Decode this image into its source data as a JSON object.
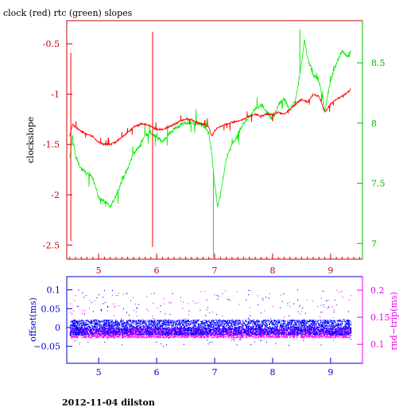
{
  "page": {
    "title": "clock (red) rtc (green) slopes",
    "footer": "2012-11-04 dilston"
  },
  "colors": {
    "red_series": "#ff0000",
    "green_series": "#00ee00",
    "blue_series": "#0000ff",
    "magenta_series": "#ff00ff",
    "top_left_axis": "#cc0000",
    "top_right_axis": "#00bb00",
    "bottom_left_axis": "#0000cc",
    "bottom_right_axis": "#ee00ee"
  },
  "chart_data": [
    {
      "type": "line",
      "title": "clock (red) rtc (green) slopes",
      "xlabel": "",
      "ylabel": "clockslope",
      "y2label": "",
      "xlim": [
        4.45,
        9.55
      ],
      "ylim": [
        -2.64,
        -0.27
      ],
      "y2lim": [
        6.87,
        8.85
      ],
      "x_ticks": [
        "5",
        "6",
        "7",
        "8",
        "9"
      ],
      "y_ticks": [
        "-0.5",
        "-1",
        "-1.5",
        "-2",
        "-2.5"
      ],
      "y2_ticks": [
        "8.5",
        "8",
        "7.5",
        "7"
      ],
      "grid": false,
      "series": [
        {
          "name": "clock",
          "axis": "left",
          "x": [
            4.5,
            4.55,
            4.6,
            4.7,
            4.8,
            4.9,
            5.0,
            5.1,
            5.2,
            5.3,
            5.4,
            5.5,
            5.6,
            5.7,
            5.8,
            5.9,
            6.0,
            6.1,
            6.2,
            6.3,
            6.4,
            6.5,
            6.6,
            6.7,
            6.8,
            6.9,
            6.95,
            7.0,
            7.1,
            7.2,
            7.3,
            7.4,
            7.5,
            7.6,
            7.7,
            7.8,
            7.9,
            8.0,
            8.1,
            8.2,
            8.3,
            8.4,
            8.5,
            8.6,
            8.7,
            8.8,
            8.9,
            9.0,
            9.1,
            9.2,
            9.3,
            9.35
          ],
          "y": [
            -1.42,
            -1.3,
            -1.33,
            -1.37,
            -1.4,
            -1.42,
            -1.48,
            -1.5,
            -1.5,
            -1.47,
            -1.43,
            -1.38,
            -1.33,
            -1.3,
            -1.3,
            -1.32,
            -1.35,
            -1.35,
            -1.33,
            -1.3,
            -1.27,
            -1.25,
            -1.25,
            -1.28,
            -1.3,
            -1.32,
            -1.42,
            -1.36,
            -1.32,
            -1.3,
            -1.28,
            -1.27,
            -1.25,
            -1.22,
            -1.2,
            -1.22,
            -1.2,
            -1.2,
            -1.18,
            -1.2,
            -1.15,
            -1.1,
            -1.05,
            -1.08,
            -1.0,
            -1.02,
            -1.18,
            -1.1,
            -1.05,
            -1.02,
            -0.98,
            -0.95
          ]
        },
        {
          "name": "rtc",
          "axis": "right",
          "x": [
            4.5,
            4.55,
            4.6,
            4.7,
            4.8,
            4.9,
            5.0,
            5.1,
            5.2,
            5.3,
            5.4,
            5.5,
            5.6,
            5.7,
            5.8,
            5.9,
            6.0,
            6.1,
            6.2,
            6.3,
            6.4,
            6.5,
            6.6,
            6.7,
            6.8,
            6.9,
            6.95,
            7.0,
            7.05,
            7.1,
            7.2,
            7.3,
            7.4,
            7.5,
            7.6,
            7.7,
            7.8,
            7.9,
            8.0,
            8.1,
            8.2,
            8.3,
            8.4,
            8.5,
            8.55,
            8.6,
            8.7,
            8.8,
            8.9,
            9.0,
            9.1,
            9.2,
            9.3,
            9.35
          ],
          "y": [
            7.7,
            7.9,
            7.72,
            7.62,
            7.58,
            7.55,
            7.38,
            7.35,
            7.3,
            7.4,
            7.52,
            7.62,
            7.75,
            7.8,
            7.9,
            7.92,
            7.88,
            7.85,
            7.9,
            7.95,
            7.98,
            8.0,
            8.0,
            8.0,
            7.98,
            7.92,
            7.75,
            7.5,
            7.3,
            7.4,
            7.7,
            7.82,
            7.9,
            8.0,
            8.05,
            8.12,
            8.15,
            8.1,
            8.02,
            8.15,
            8.2,
            8.1,
            8.2,
            8.5,
            8.7,
            8.55,
            8.4,
            8.35,
            8.1,
            8.35,
            8.5,
            8.6,
            8.55,
            8.6
          ]
        }
      ],
      "spikes": [
        {
          "series": "clock",
          "x": 4.52,
          "y": -2.46
        },
        {
          "series": "clock",
          "x": 4.52,
          "y": -0.59
        },
        {
          "series": "clock",
          "x": 5.93,
          "y": -2.52
        },
        {
          "series": "clock",
          "x": 5.93,
          "y": -0.38
        },
        {
          "series": "rtc",
          "x": 6.98,
          "y": 6.88
        },
        {
          "series": "rtc",
          "x": 8.47,
          "y": 8.78
        }
      ]
    },
    {
      "type": "scatter",
      "xlabel": "",
      "ylabel": "offset(ms)",
      "y2label": "rnd−trip(ms)",
      "xlim": [
        4.45,
        9.55
      ],
      "ylim": [
        -0.095,
        0.135
      ],
      "y2lim": [
        0.065,
        0.225
      ],
      "x_ticks": [
        "5",
        "6",
        "7",
        "8",
        "9"
      ],
      "y_ticks": [
        "0.1",
        "0.05",
        "0",
        "−0.05"
      ],
      "y2_ticks": [
        "0.2",
        "0.15",
        "0.1"
      ],
      "grid": false,
      "series": [
        {
          "name": "offset",
          "axis": "left",
          "x_range": [
            4.5,
            9.35
          ],
          "center": 0.0,
          "band": [
            -0.02,
            0.02
          ],
          "outliers": [
            -0.05,
            0.1
          ]
        },
        {
          "name": "rnd-trip",
          "axis": "right",
          "x_range": [
            4.5,
            9.35
          ],
          "center": 0.12,
          "band": [
            0.112,
            0.13
          ],
          "outliers": [
            0.105,
            0.2
          ]
        }
      ]
    }
  ]
}
